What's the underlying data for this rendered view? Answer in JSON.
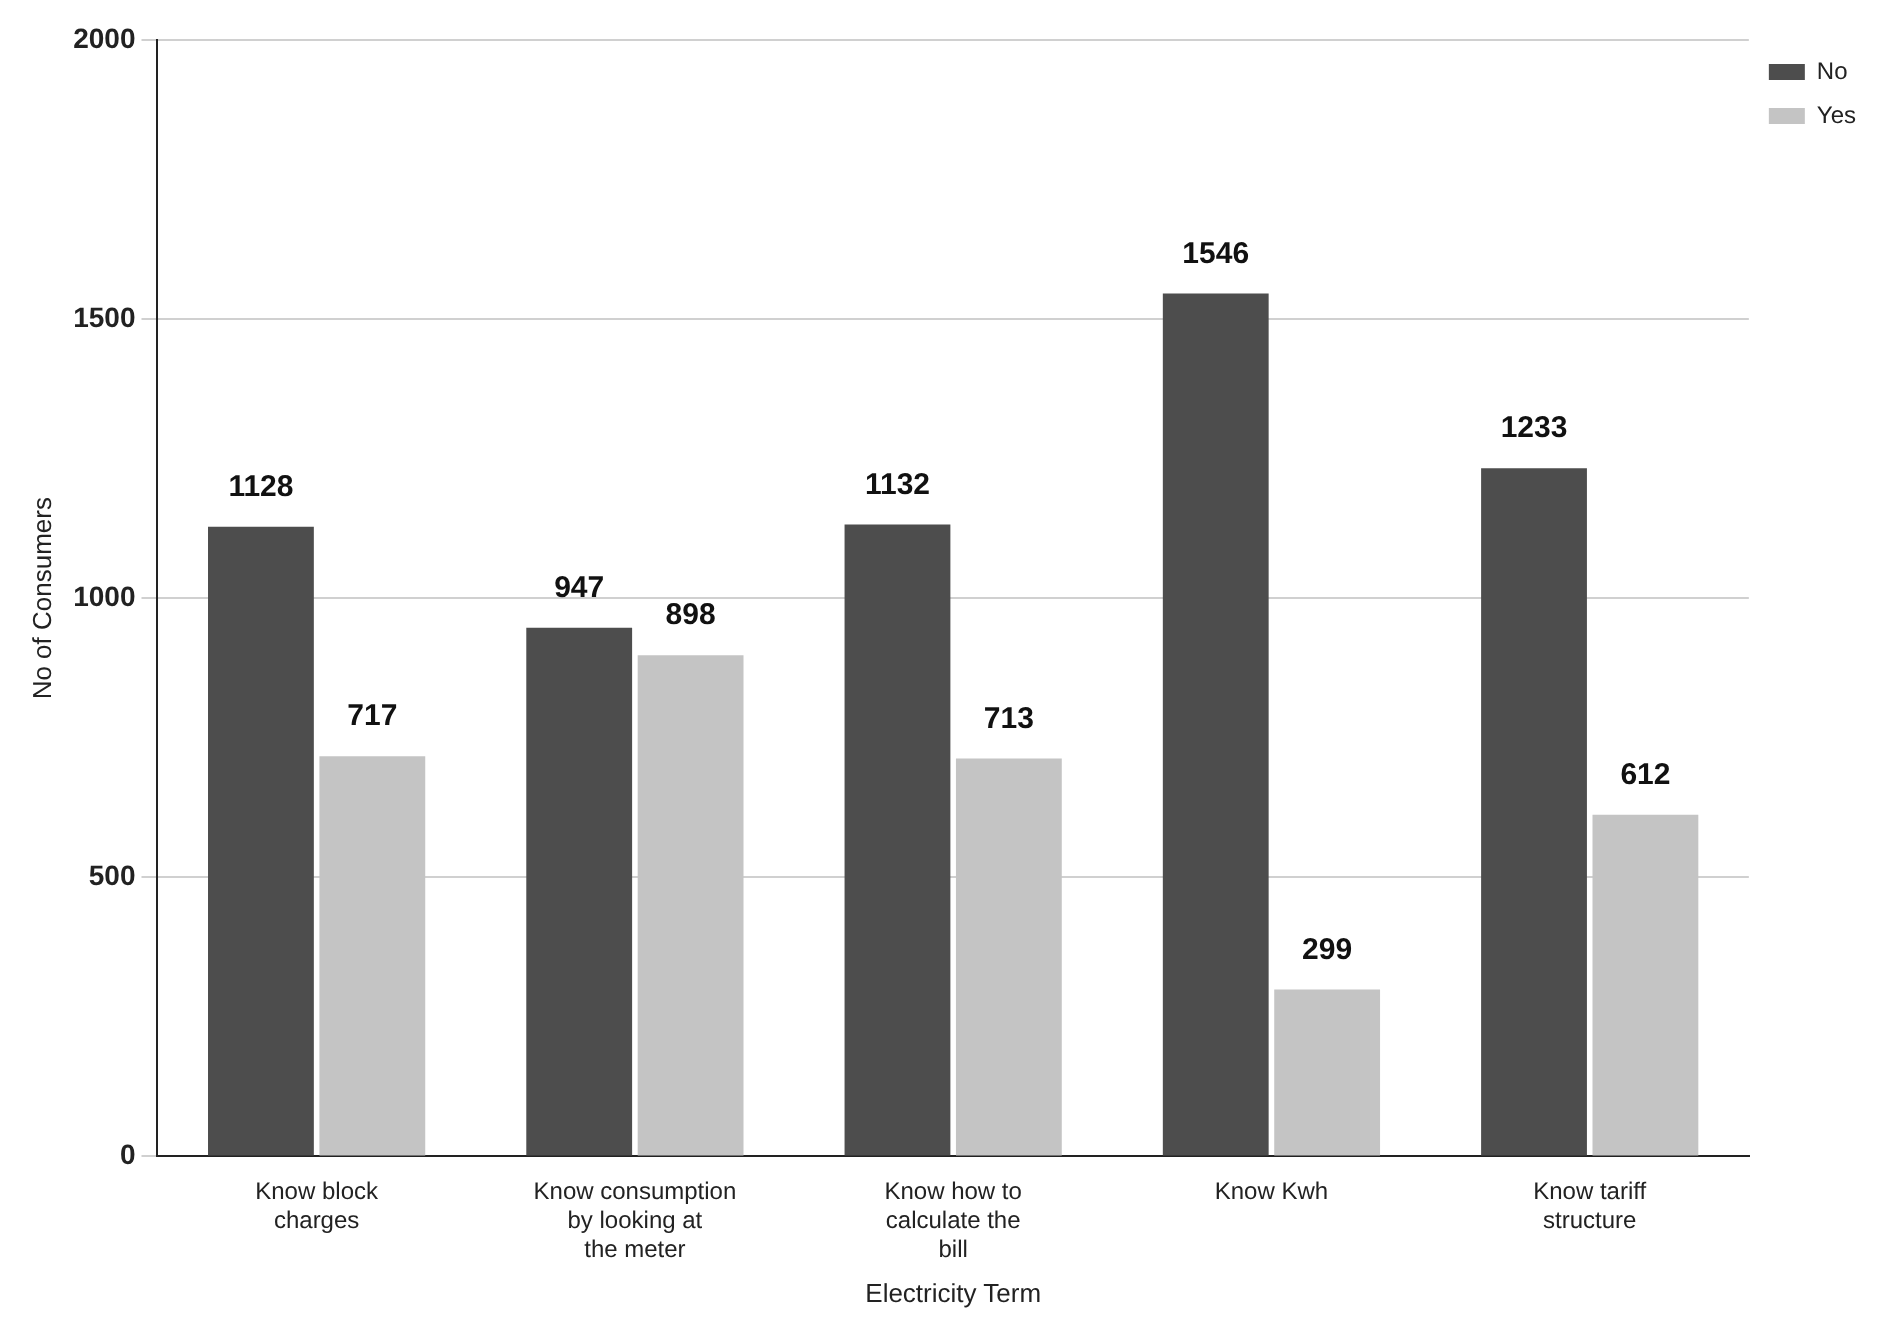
{
  "chart_data": {
    "type": "bar",
    "xlabel": "Electricity Term",
    "ylabel": "No of Consumers",
    "categories": [
      "Know block charges",
      "Know consumption by looking at the meter",
      "Know how to calculate the bill",
      "Know Kwh",
      "Know tariff structure"
    ],
    "series": [
      {
        "name": "No",
        "color": "#4d4d4d",
        "values": [
          1128,
          947,
          1132,
          1546,
          1233
        ]
      },
      {
        "name": "Yes",
        "color": "#c4c4c4",
        "values": [
          717,
          898,
          713,
          299,
          612
        ]
      }
    ],
    "ylim": [
      0,
      2000
    ],
    "yticks": [
      0,
      500,
      1000,
      1500,
      2000
    ],
    "grid": "y",
    "legend": "top right",
    "data_labels": true
  }
}
